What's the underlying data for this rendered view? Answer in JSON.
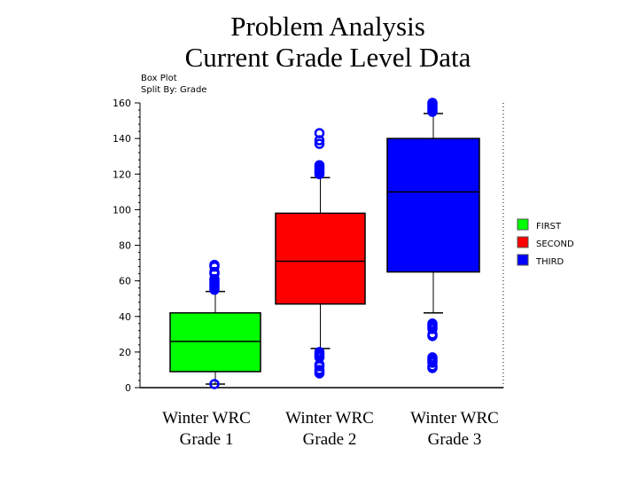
{
  "chart_data": {
    "type": "boxplot",
    "title_line1": "Problem Analysis",
    "title_line2": "Current Grade Level Data",
    "subtitle_line1": "Box Plot",
    "subtitle_line2": "Split By: Grade",
    "ylim": [
      0,
      160
    ],
    "y_ticks": [
      0,
      20,
      40,
      60,
      80,
      100,
      120,
      140,
      160
    ],
    "legend_placement": "right",
    "series": [
      {
        "name": "FIRST",
        "category_line1": "Winter WRC",
        "category_line2": "Grade 1",
        "color": "#00ff00",
        "q1": 9,
        "median": 26,
        "q3": 42,
        "whisker_low": 2,
        "whisker_high": 54,
        "outliers": [
          2,
          55,
          56,
          57,
          58,
          59,
          60,
          61,
          64,
          65,
          68,
          69
        ]
      },
      {
        "name": "SECOND",
        "category_line1": "Winter WRC",
        "category_line2": "Grade 2",
        "color": "#ff0000",
        "q1": 47,
        "median": 71,
        "q3": 98,
        "whisker_low": 22,
        "whisker_high": 118,
        "outliers": [
          8,
          9,
          10,
          12,
          13,
          17,
          18,
          19,
          20,
          120,
          121,
          122,
          123,
          124,
          125,
          137,
          139,
          143
        ]
      },
      {
        "name": "THIRD",
        "category_line1": "Winter WRC",
        "category_line2": "Grade 3",
        "color": "#0000ff",
        "q1": 65,
        "median": 110,
        "q3": 140,
        "whisker_low": 42,
        "whisker_high": 154,
        "outliers": [
          11,
          12,
          14,
          15,
          16,
          17,
          29,
          30,
          33,
          34,
          35,
          36,
          155,
          156,
          157,
          158,
          159,
          160
        ]
      }
    ]
  },
  "colors": {
    "outlier_marker": "#0000ff"
  }
}
